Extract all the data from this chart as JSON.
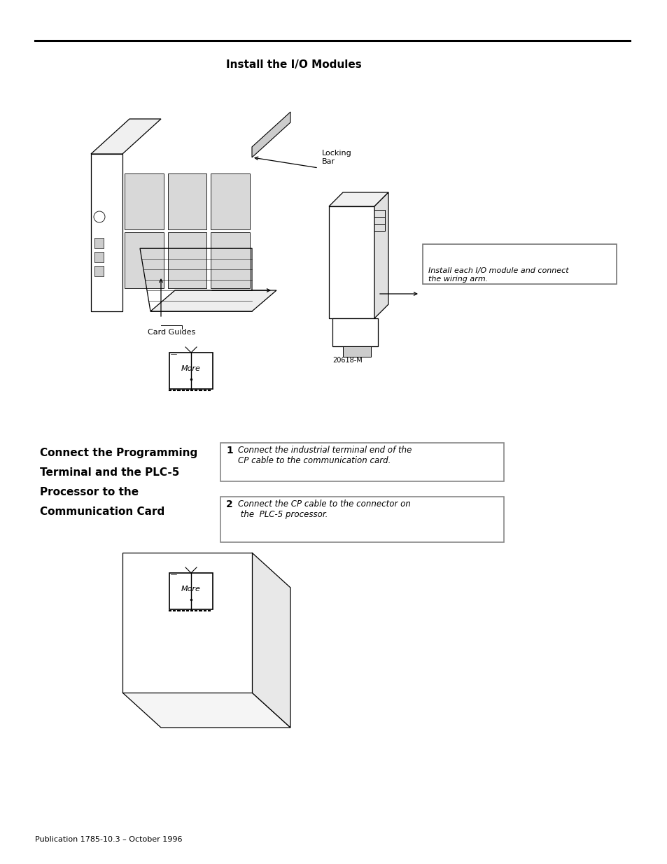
{
  "background_color": "#ffffff",
  "page_width": 9.54,
  "page_height": 12.35,
  "section1_title": "Install the I/O Modules",
  "locking_bar_label": "Locking\nBar",
  "card_guides_label": "Card Guides",
  "figure_code": "20618-M",
  "install_box_text": "Install each I/O module and connect\nthe wiring arm.",
  "section2_title_lines": [
    "Connect the Programming",
    "Terminal and the PLC-5",
    "Processor to the",
    "Communication Card"
  ],
  "step1_num": "1",
  "step1_text": "Connect the industrial terminal end of the\nCP cable to the communication card.",
  "step2_num": "2",
  "step2_text": "Connect the CP cable to the connector on\n the  PLC-5 processor.",
  "footer_text": "Publication 1785-10.3 – October 1996",
  "more_text": "More"
}
